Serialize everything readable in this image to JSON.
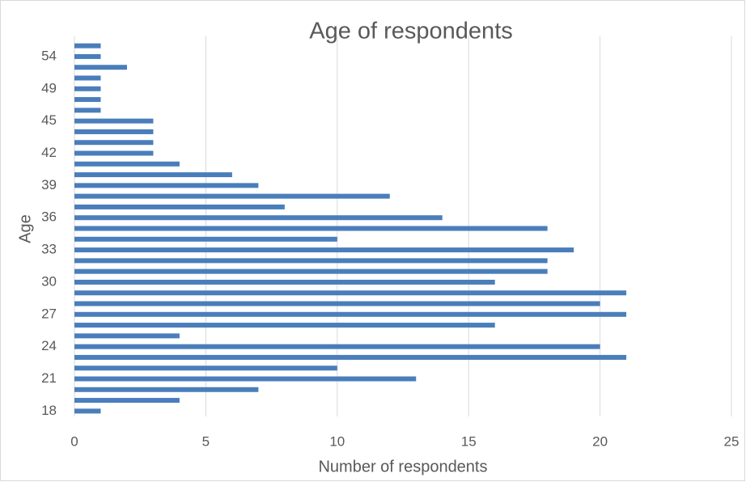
{
  "chart_data": {
    "type": "hbar",
    "title": "Age of respondents",
    "x_label": "Number of respondents",
    "y_label": "Age",
    "categories": [
      "18",
      null,
      null,
      "21",
      null,
      null,
      "24",
      null,
      null,
      "27",
      null,
      null,
      "30",
      null,
      null,
      "33",
      null,
      null,
      "36",
      null,
      null,
      "39",
      null,
      null,
      "42",
      null,
      null,
      "45",
      null,
      null,
      "49",
      null,
      null,
      "54",
      null
    ],
    "values": [
      1,
      4,
      7,
      13,
      10,
      21,
      20,
      4,
      16,
      21,
      20,
      21,
      16,
      18,
      18,
      19,
      10,
      18,
      14,
      8,
      12,
      7,
      6,
      4,
      3,
      3,
      3,
      3,
      1,
      1,
      1,
      1,
      2,
      1,
      1
    ],
    "color": "#4a7ebb",
    "xlim": [
      0,
      25
    ],
    "xticks": [
      0,
      5,
      10,
      15,
      20,
      25
    ],
    "grid": true
  }
}
